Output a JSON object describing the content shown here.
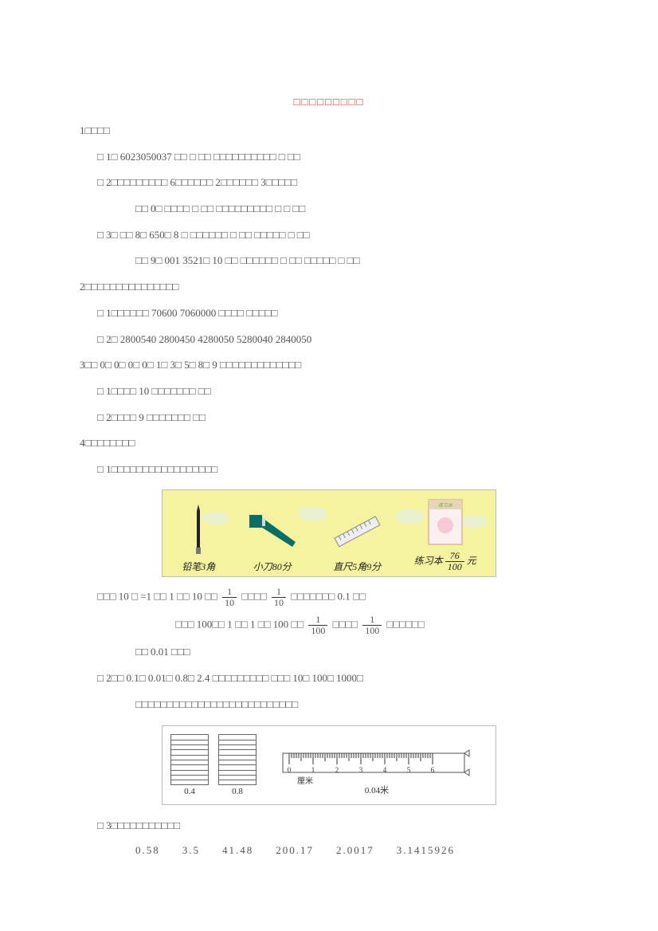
{
  "title": "□□□□□□□□□",
  "s1": {
    "heading": "1□□□□",
    "l1": "□ 1□ 6023050037 □□ □          □□ □□□□□□□□□□         □            □□",
    "l2": "□ 2□□□□□□□□□           6□□□□□□      2□□□□□□       3□□□□□",
    "l3": "□□   0□ □□□□  □         □□ □□□□□□□□□             □       □ □□",
    "l4": "□ 3□ □□   8□ 650□ 8 □    □□□□□□    □        □□ □□□□□  □       □□",
    "l5": "□□   9□ 001 3521□ 10 □□  □□□□□□  □       □□ □□□□□  □      □□"
  },
  "s2": {
    "heading": "2□□□□□□□□□□□□□□□",
    "l1": "□ 1□□□□□□         70600      7060000     □□□□      □□□□□",
    "l2": "□ 2□ 2800540      2800450       4280050       5280040      2840050"
  },
  "s3": {
    "heading": "3□□   0□ 0□ 0□ 0□ 1□ 3□ 5□ 8□ 9 □□□□□□□□□□□□□",
    "l1": "□ 1□□□□      10 □□□□□□□                                        □□",
    "l2": "□ 2□□□□       9 □□□□□□□                                        □□"
  },
  "s4": {
    "heading": "4□□□□□□□□",
    "l1": "□ 1□□□□□□□□□□□□□□□□□"
  },
  "items": {
    "pencil": "铅笔3角",
    "knife": "小刀80分",
    "ruler": "直尺5角9分",
    "notebook_prefix": "练习本",
    "notebook_num": "76",
    "notebook_den": "100",
    "notebook_suffix": "元"
  },
  "paraA": {
    "a1": "□□□   10 □ =1 □□   1 □□   10 □□  ",
    "frac1_num": "1",
    "frac1_den": "10",
    "a2": "□□□□   ",
    "frac2_num": "1",
    "frac2_den": "10",
    "a3": "□□□□□□□         0.1 □□",
    "b1": "□□□   100□□   1 □□  1 □□   100 □□  ",
    "frac3_num": "1",
    "frac3_den": "100",
    "b2": "□□□□      ",
    "frac4_num": "1",
    "frac4_den": "100",
    "b3": "□□□□□□",
    "c1": "□□   0.01 □□□"
  },
  "s4b": {
    "l1": "□ 2□□  0.1□ 0.01□ 0.8□ 2.4 □□□□□□□□□          □□□   10□ 100□ 1000□",
    "l2": "□□□□□□□□□□□□□□□□□□□□□□□□□□"
  },
  "fig2": {
    "label_a": "0.4",
    "label_b": "0.8",
    "ruler_unit": "厘米",
    "ruler_value": "0.04米",
    "ticks": [
      "0",
      "1",
      "2",
      "3",
      "4",
      "5",
      "6"
    ]
  },
  "s4c": "□ 3□□□□□□□□□□□",
  "decimals": [
    "0.58",
    "3.5",
    "41.48",
    "200.17",
    "2.0017",
    "3.1415926"
  ]
}
